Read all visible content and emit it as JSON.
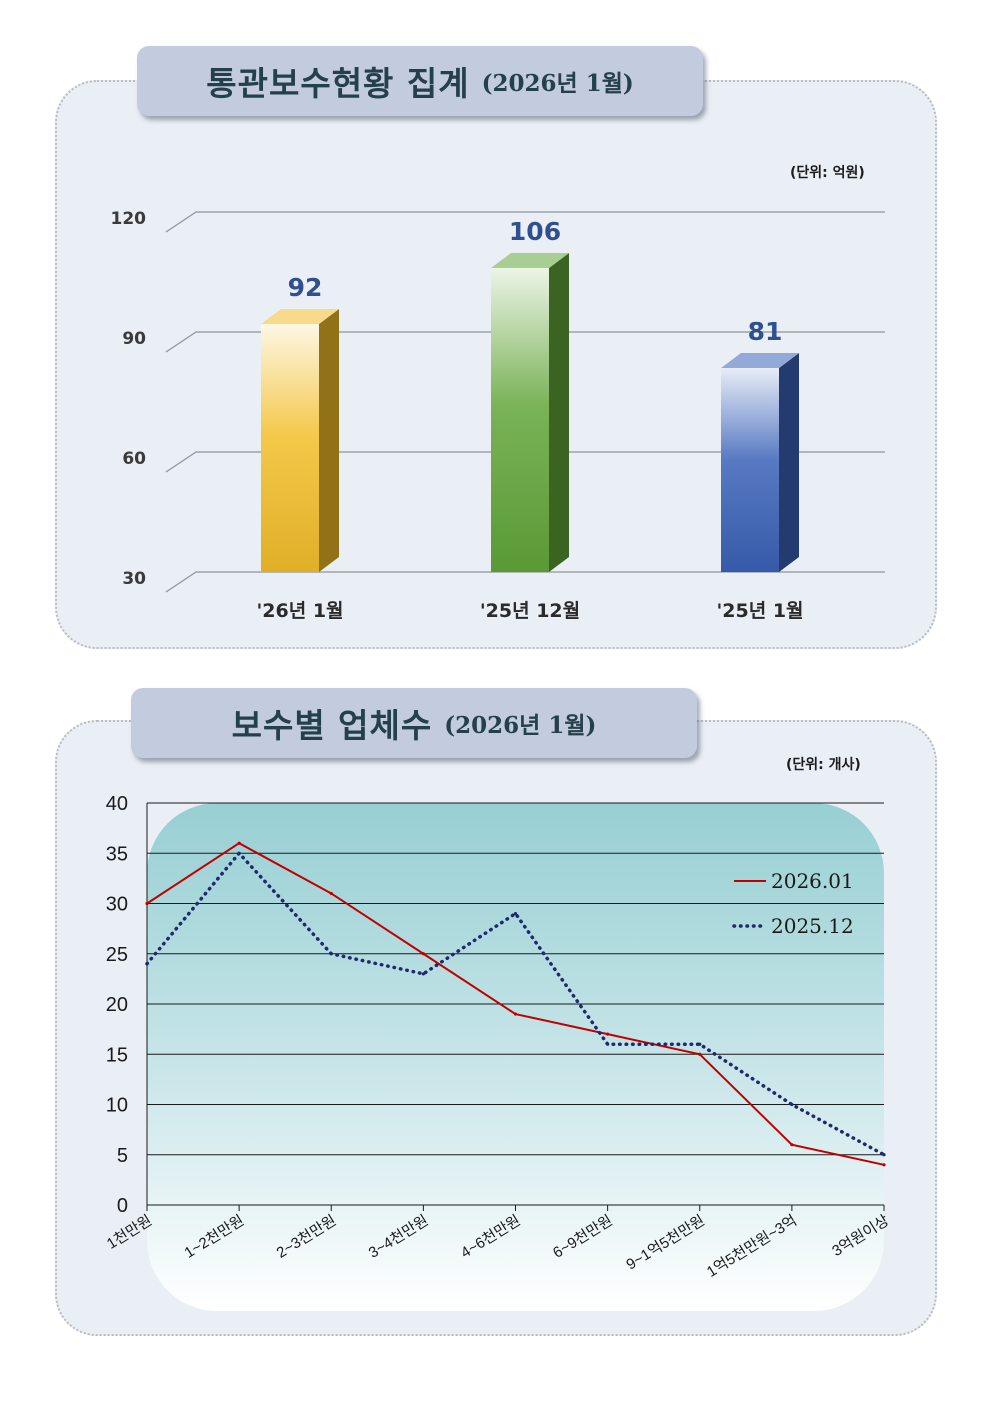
{
  "panel1": {
    "title_main": "통관보수현황 집계",
    "title_sub": "(2026년 1월)",
    "unit": "(단위: 억원)"
  },
  "panel2": {
    "title_main": "보수별 업체수",
    "title_sub": "(2026년 1월)",
    "unit": "(단위: 개사)"
  },
  "chart_data": [
    {
      "type": "bar",
      "title": "통관보수현황 집계 (2026년 1월)",
      "unit": "(단위: 억원)",
      "categories": [
        "'26년 1월",
        "'25년 12월",
        "'25년 1월"
      ],
      "values": [
        92,
        106,
        81
      ],
      "data_labels": [
        "92",
        "106",
        "81"
      ],
      "ylim": [
        30,
        120
      ],
      "yticks": [
        30,
        60,
        90,
        120
      ],
      "ytick_labels": [
        "30",
        "60",
        "90",
        "120"
      ],
      "grid": true,
      "colors": [
        "#f2be2a",
        "#62a63a",
        "#3b62b8"
      ],
      "label_color": "#2f4f8f"
    },
    {
      "type": "line",
      "title": "보수별 업체수 (2026년 1월)",
      "unit": "(단위: 개사)",
      "categories": [
        "1천만원",
        "1~2천만원",
        "2~3천만원",
        "3~4천만원",
        "4~6천만원",
        "6~9천만원",
        "9~1억5천만원",
        "1억5천만원~3억",
        "3억원이상"
      ],
      "series": [
        {
          "name": "2026.01",
          "values": [
            30,
            36,
            31,
            25,
            19,
            17,
            15,
            6,
            4
          ],
          "color": "#c00000",
          "style": "solid"
        },
        {
          "name": "2025.12",
          "values": [
            24,
            35,
            25,
            23,
            29,
            16,
            16,
            10,
            5
          ],
          "color": "#1f2a6e",
          "style": "dotted"
        }
      ],
      "ylim": [
        0,
        40
      ],
      "yticks": [
        0,
        5,
        10,
        15,
        20,
        25,
        30,
        35,
        40
      ],
      "ytick_labels": [
        "0",
        "5",
        "10",
        "15",
        "20",
        "25",
        "30",
        "35",
        "40"
      ],
      "grid": true,
      "legend": "top-right"
    }
  ]
}
